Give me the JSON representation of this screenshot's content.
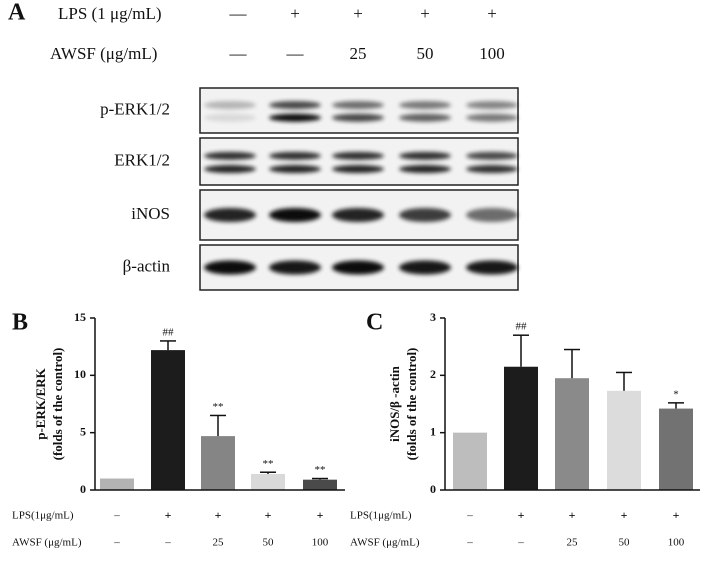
{
  "figure_labels": {
    "a": "A",
    "b": "B",
    "c": "C"
  },
  "blot": {
    "treatments": [
      {
        "label": "LPS (1 μg/mL)",
        "values": [
          "—",
          "+",
          "+",
          "+",
          "+"
        ]
      },
      {
        "label": "AWSF (μg/mL)",
        "values": [
          "—",
          "—",
          "25",
          "50",
          "100"
        ]
      }
    ],
    "bands": [
      "p-ERK1/2",
      "ERK1/2",
      "iNOS",
      "β-actin"
    ]
  },
  "chart_data": [
    {
      "type": "bar",
      "y_label": [
        "p-ERK/ERK",
        "(folds of the control)"
      ],
      "treatments": [
        {
          "label": "LPS(1μg/mL)",
          "values": [
            "–",
            "+",
            "+",
            "+",
            "+"
          ]
        },
        {
          "label": "AWSF (μg/mL)",
          "values": [
            "–",
            "–",
            "25",
            "50",
            "100"
          ]
        }
      ],
      "values": [
        1,
        12.2,
        4.7,
        1.4,
        0.9
      ],
      "errors": [
        0,
        0.8,
        1.8,
        0.15,
        0.1
      ],
      "annotations": [
        null,
        "##",
        "**",
        "**",
        "**"
      ],
      "colors": [
        "#b3b3b3",
        "#1c1c1c",
        "#858585",
        "#d9d9d9",
        "#4a4a4a"
      ],
      "ylim": [
        0,
        15
      ],
      "yticks": [
        0,
        5,
        10,
        15
      ]
    },
    {
      "type": "bar",
      "y_label": [
        "iNOS/β -actin",
        "(folds of the control)"
      ],
      "treatments": [
        {
          "label": "LPS(1μg/mL)",
          "values": [
            "–",
            "+",
            "+",
            "+",
            "+"
          ]
        },
        {
          "label": "AWSF (μg/mL)",
          "values": [
            "–",
            "–",
            "25",
            "50",
            "100"
          ]
        }
      ],
      "values": [
        1,
        2.15,
        1.95,
        1.73,
        1.42
      ],
      "errors": [
        0,
        0.55,
        0.5,
        0.32,
        0.1
      ],
      "annotations": [
        null,
        "##",
        null,
        null,
        "*"
      ],
      "colors": [
        "#bdbdbd",
        "#1c1c1c",
        "#8a8a8a",
        "#dcdcdc",
        "#727272"
      ],
      "ylim": [
        0,
        3
      ],
      "yticks": [
        0,
        1,
        2,
        3
      ]
    }
  ]
}
